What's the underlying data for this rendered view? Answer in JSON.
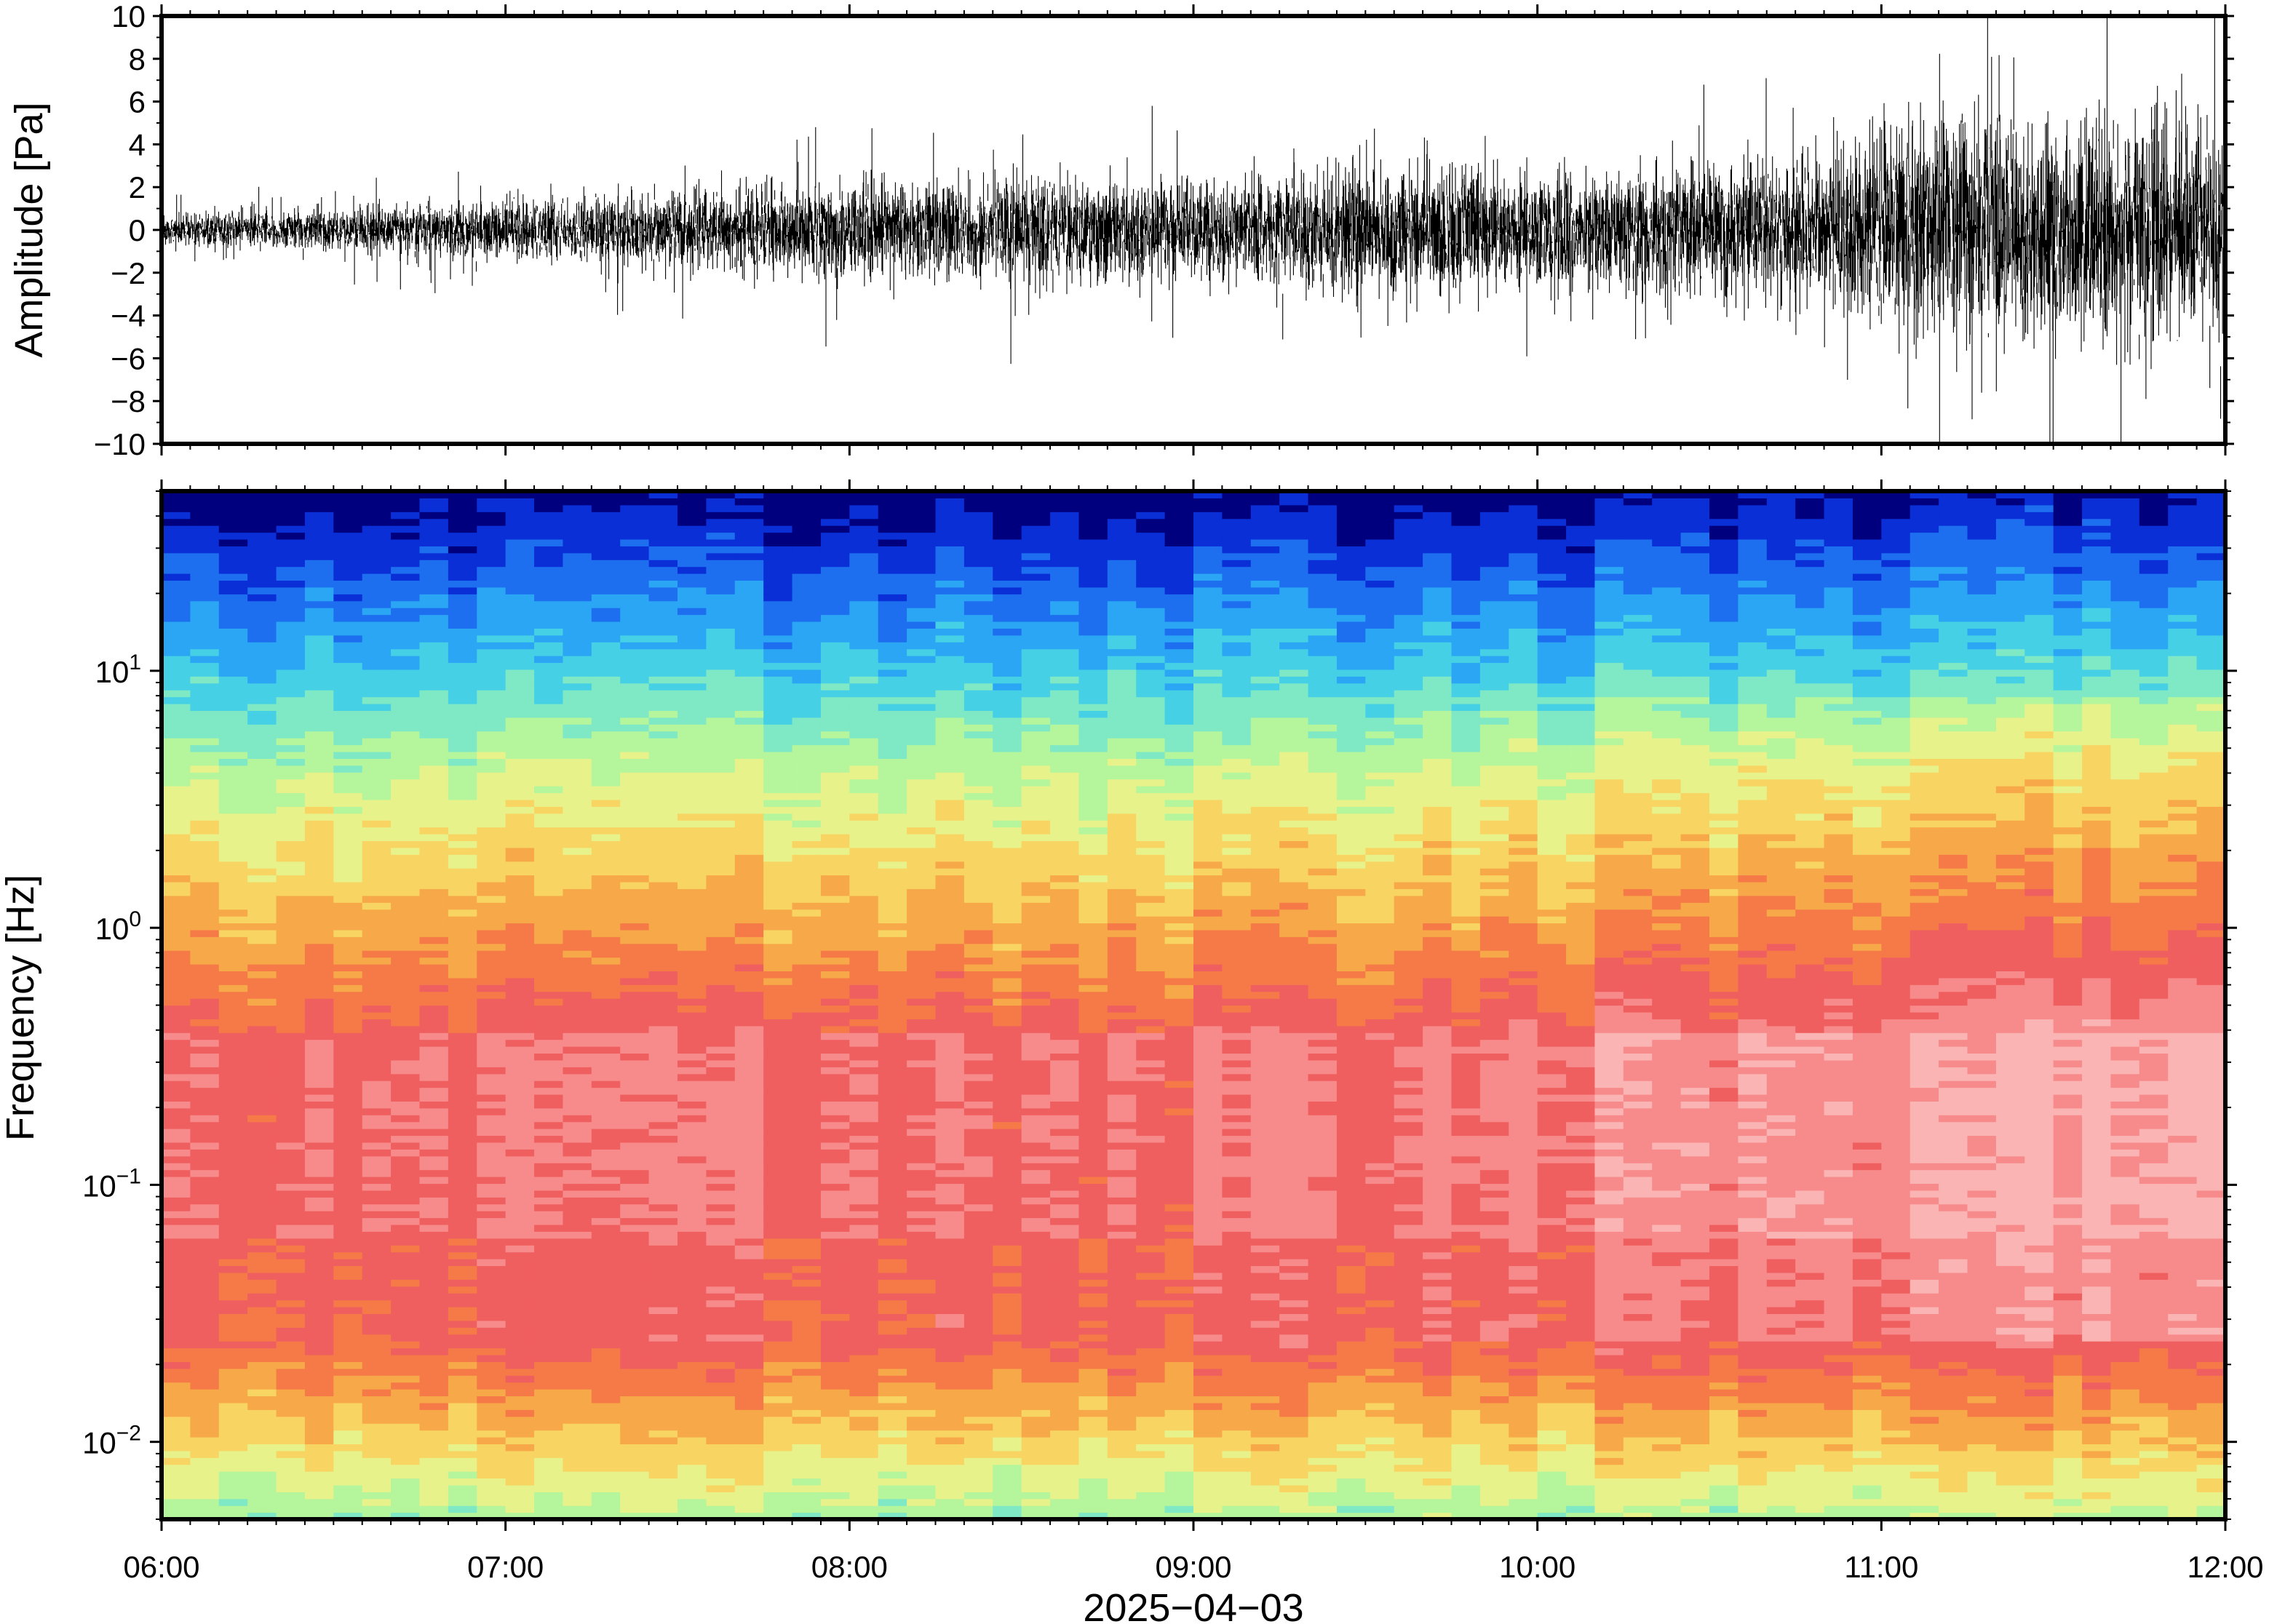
{
  "colors": {
    "background": "#ffffff",
    "trace": "#000000",
    "colormap": [
      "#00007f",
      "#0a2fd6",
      "#1e6ff0",
      "#2aa6f4",
      "#45d0e6",
      "#7fe8c4",
      "#b5f59c",
      "#e8f28a",
      "#f8d462",
      "#f7a848",
      "#f57a48",
      "#f05f5f",
      "#f78a8a",
      "#fbb4b4"
    ]
  },
  "chart_data": [
    {
      "type": "line",
      "description_of_series": "infrasound pressure waveform",
      "ylabel": "Amplitude [Pa]",
      "ylim": [
        -10,
        10
      ],
      "yticks": [
        10,
        8,
        6,
        4,
        2,
        0,
        -2,
        -4,
        -6,
        -8,
        -10
      ],
      "ytick_labels": [
        "10",
        "8",
        "6",
        "4",
        "2",
        "0",
        "−2",
        "−4",
        "−6",
        "−8",
        "−10"
      ],
      "x_range": [
        "06:00",
        "12:00"
      ],
      "envelope_hours": [
        0,
        0.5,
        1,
        1.5,
        2,
        2.5,
        3,
        3.4,
        3.5,
        4,
        4.5,
        4.9,
        5,
        5.5,
        6
      ],
      "envelope_pa": [
        0.6,
        0.9,
        1.2,
        1.6,
        1.9,
        2.1,
        2.0,
        2.3,
        2.8,
        2.4,
        2.8,
        3.4,
        4.6,
        4.5,
        4.8
      ],
      "grid": false
    },
    {
      "type": "heatmap",
      "ylabel": "Frequency [Hz]",
      "yscale": "log",
      "ylim": [
        0.005,
        50
      ],
      "yticks": [
        0.01,
        0.1,
        1,
        10
      ],
      "ytick_labels": [
        {
          "base": "10",
          "exp": "−2"
        },
        {
          "base": "10",
          "exp": "−1"
        },
        {
          "base": "10",
          "exp": "0"
        },
        {
          "base": "10",
          "exp": "1"
        }
      ],
      "xlabel": "2025−04−03",
      "x_ticks": [
        "06:00",
        "07:00",
        "08:00",
        "09:00",
        "10:00",
        "11:00",
        "12:00"
      ],
      "x_range": [
        "06:00",
        "12:00"
      ],
      "time_columns": 72,
      "legend": "none"
    }
  ]
}
